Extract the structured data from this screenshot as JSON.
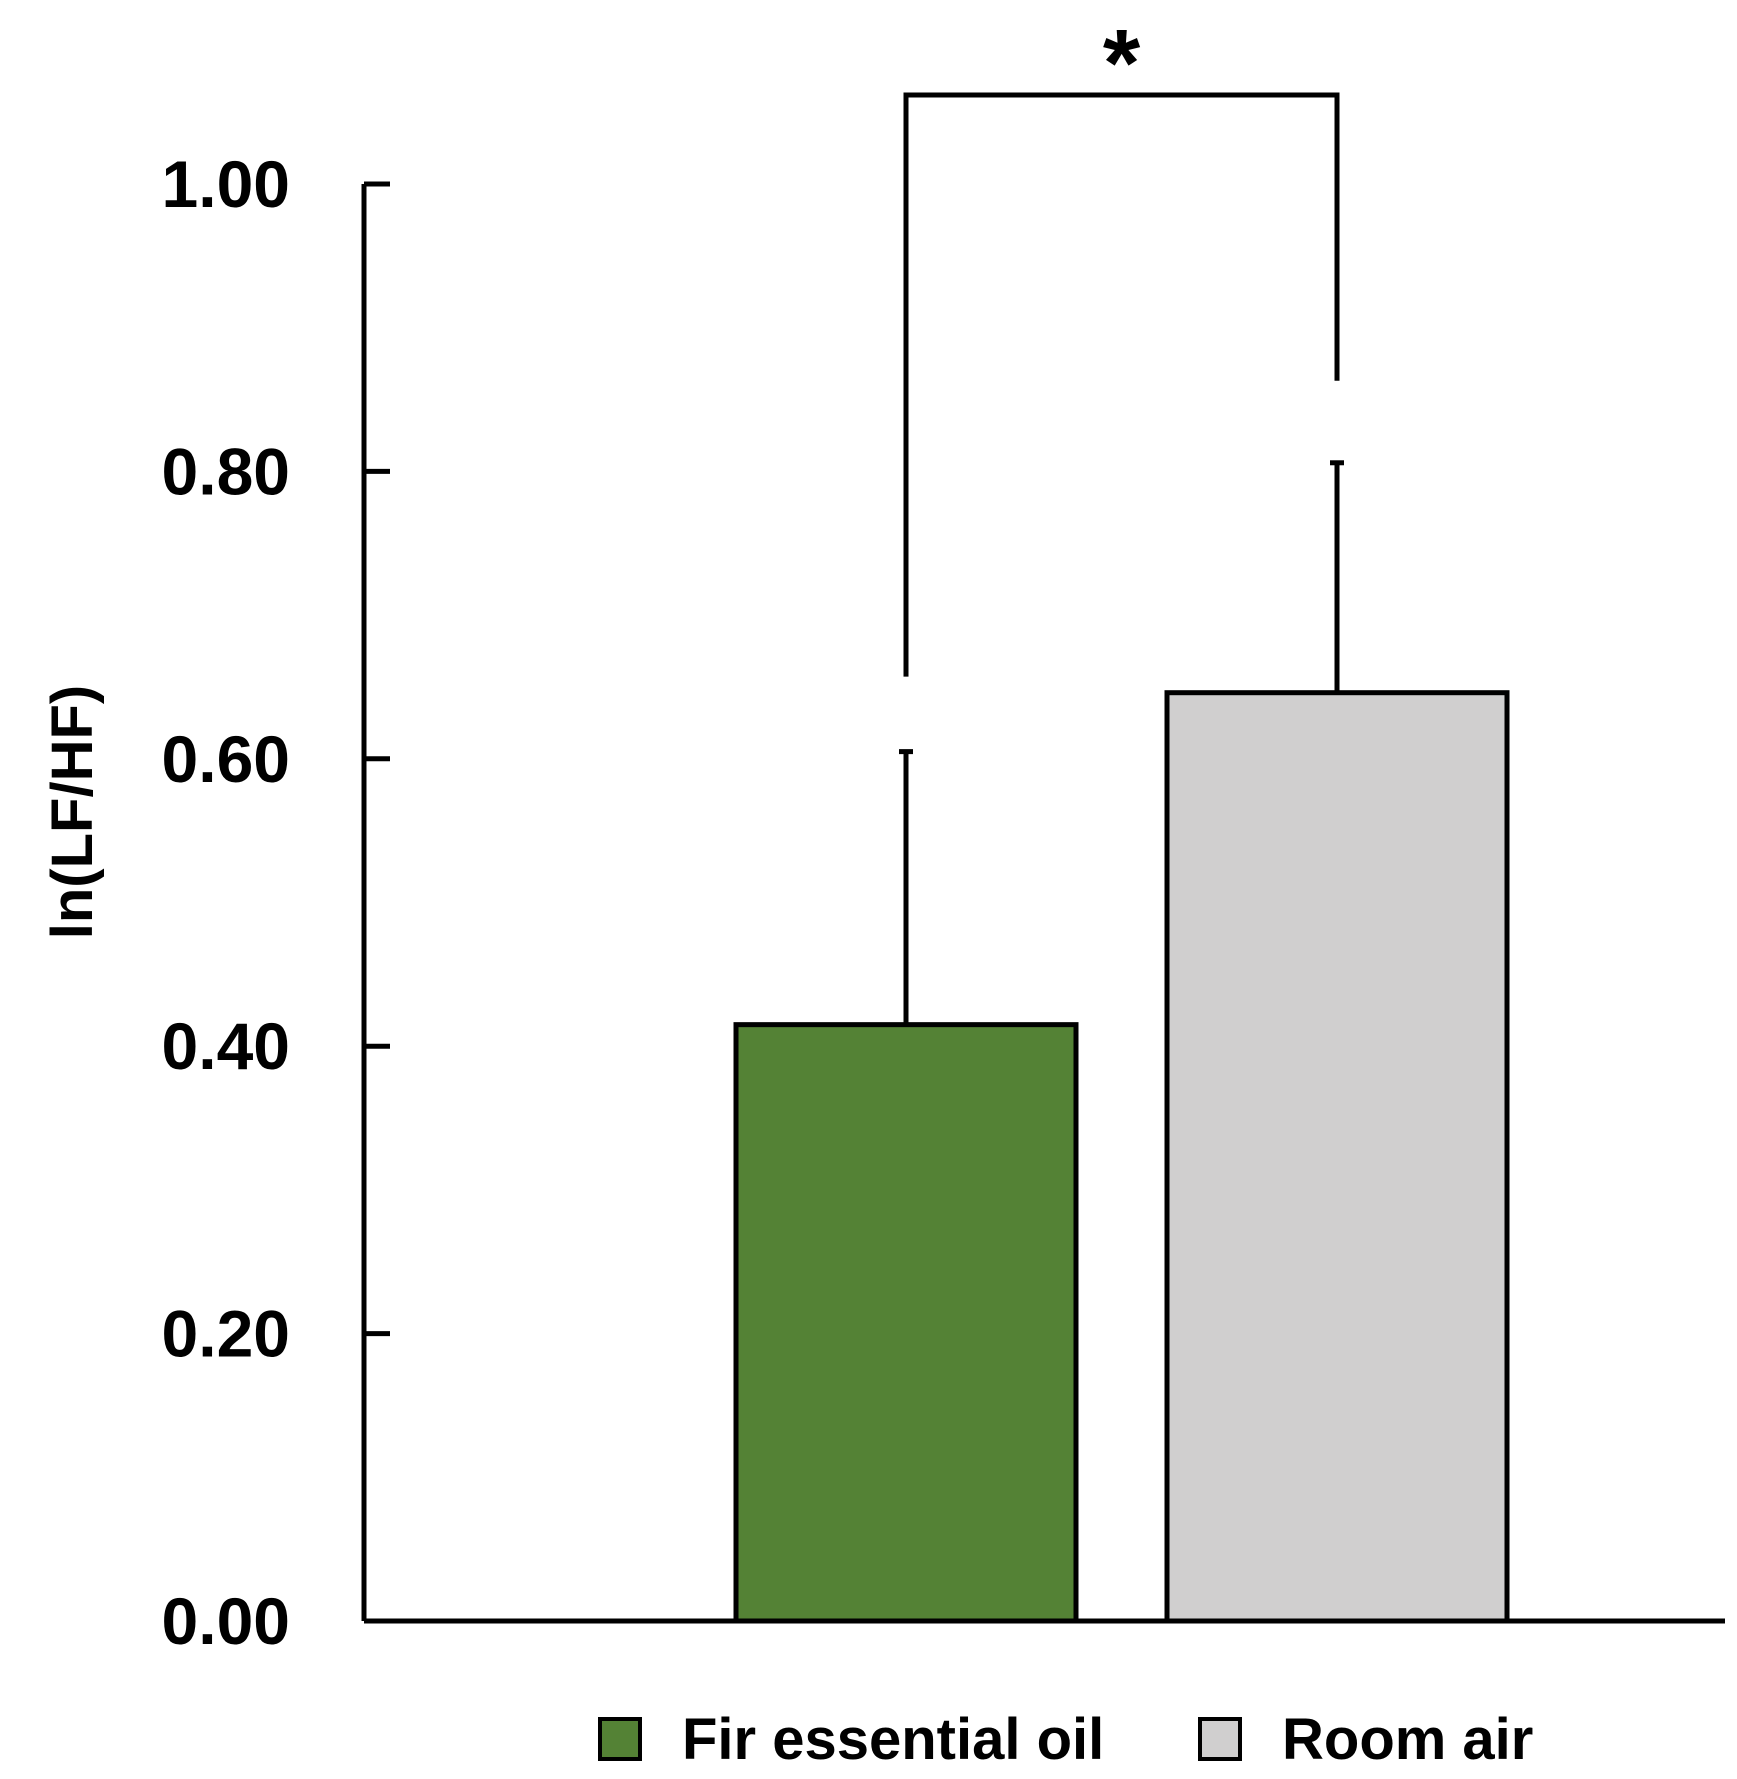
{
  "chart_data": {
    "type": "bar",
    "title": "",
    "xlabel": "",
    "ylabel": "ln(LF/HF)",
    "ylim": [
      0,
      1.0
    ],
    "yticks": [
      "0.00",
      "0.20",
      "0.40",
      "0.60",
      "0.80",
      "1.00"
    ],
    "grid": false,
    "legend_position": "bottom",
    "series": [
      {
        "name": "Fir essential oil",
        "value": 0.415,
        "error": 0.19,
        "color": "#548235"
      },
      {
        "name": "Room air",
        "value": 0.646,
        "error": 0.16,
        "color": "#d0cfcf"
      }
    ],
    "annotation": {
      "text": "*",
      "between": [
        "Fir essential oil",
        "Room air"
      ]
    }
  }
}
